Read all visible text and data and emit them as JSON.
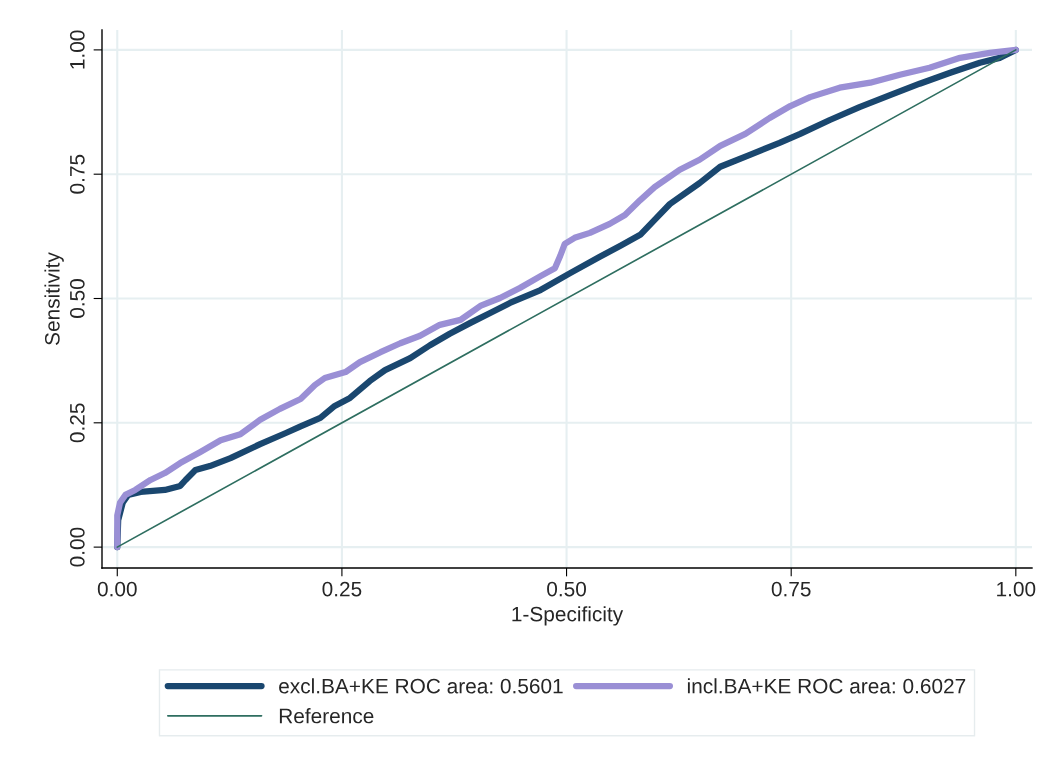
{
  "chart_data": {
    "type": "line",
    "xlabel": "1-Specificity",
    "ylabel": "Sensitivity",
    "xlim": [
      -0.017,
      1.018
    ],
    "ylim": [
      -0.042,
      1.04
    ],
    "xticks": [
      {
        "value": 0,
        "label": "0.00"
      },
      {
        "value": 0.25,
        "label": "0.25"
      },
      {
        "value": 0.5,
        "label": "0.50"
      },
      {
        "value": 0.75,
        "label": "0.75"
      },
      {
        "value": 1,
        "label": "1.00"
      }
    ],
    "yticks": [
      {
        "value": 0,
        "label": "0.00"
      },
      {
        "value": 0.25,
        "label": "0.25"
      },
      {
        "value": 0.5,
        "label": "0.50"
      },
      {
        "value": 0.75,
        "label": "0.75"
      },
      {
        "value": 1,
        "label": "1.00"
      }
    ],
    "grid": true,
    "legend": "bottom",
    "series": [
      {
        "name": "excl.BA+KE ROC area: 0.5601",
        "color": "#1a476f",
        "x": [
          0,
          0.001,
          0.006,
          0.012,
          0.026,
          0.053,
          0.07,
          0.076,
          0.087,
          0.103,
          0.126,
          0.159,
          0.187,
          0.204,
          0.226,
          0.242,
          0.259,
          0.281,
          0.298,
          0.326,
          0.348,
          0.37,
          0.393,
          0.415,
          0.437,
          0.471,
          0.504,
          0.537,
          0.56,
          0.582,
          0.598,
          0.615,
          0.648,
          0.671,
          0.704,
          0.737,
          0.76,
          0.793,
          0.826,
          0.86,
          0.893,
          0.927,
          0.96,
          0.982,
          1
        ],
        "values": [
          0,
          0.054,
          0.089,
          0.105,
          0.111,
          0.115,
          0.123,
          0.135,
          0.155,
          0.163,
          0.179,
          0.207,
          0.229,
          0.243,
          0.26,
          0.284,
          0.3,
          0.334,
          0.356,
          0.38,
          0.406,
          0.429,
          0.451,
          0.471,
          0.491,
          0.517,
          0.551,
          0.584,
          0.606,
          0.628,
          0.658,
          0.69,
          0.732,
          0.765,
          0.789,
          0.813,
          0.831,
          0.859,
          0.885,
          0.909,
          0.932,
          0.954,
          0.974,
          0.984,
          1
        ]
      },
      {
        "name": "incl.BA+KE ROC area: 0.6027",
        "color": "#9a8fd5",
        "x": [
          0,
          0,
          0.003,
          0.009,
          0.02,
          0.037,
          0.053,
          0.07,
          0.092,
          0.115,
          0.137,
          0.159,
          0.181,
          0.204,
          0.22,
          0.231,
          0.254,
          0.27,
          0.293,
          0.315,
          0.337,
          0.359,
          0.382,
          0.404,
          0.426,
          0.448,
          0.471,
          0.487,
          0.493,
          0.498,
          0.509,
          0.526,
          0.548,
          0.565,
          0.582,
          0.598,
          0.626,
          0.648,
          0.671,
          0.699,
          0.726,
          0.749,
          0.771,
          0.804,
          0.838,
          0.871,
          0.904,
          0.938,
          0.971,
          1
        ],
        "values": [
          0,
          0.064,
          0.089,
          0.105,
          0.115,
          0.135,
          0.149,
          0.169,
          0.191,
          0.215,
          0.227,
          0.256,
          0.278,
          0.298,
          0.326,
          0.34,
          0.352,
          0.372,
          0.392,
          0.41,
          0.425,
          0.447,
          0.457,
          0.485,
          0.501,
          0.521,
          0.545,
          0.561,
          0.586,
          0.61,
          0.622,
          0.632,
          0.65,
          0.668,
          0.698,
          0.724,
          0.759,
          0.779,
          0.807,
          0.831,
          0.863,
          0.887,
          0.905,
          0.924,
          0.934,
          0.95,
          0.964,
          0.984,
          0.994,
          1
        ]
      },
      {
        "name": "Reference",
        "color": "#2e6e60",
        "x": [
          0,
          1
        ],
        "values": [
          0,
          1
        ]
      }
    ]
  }
}
